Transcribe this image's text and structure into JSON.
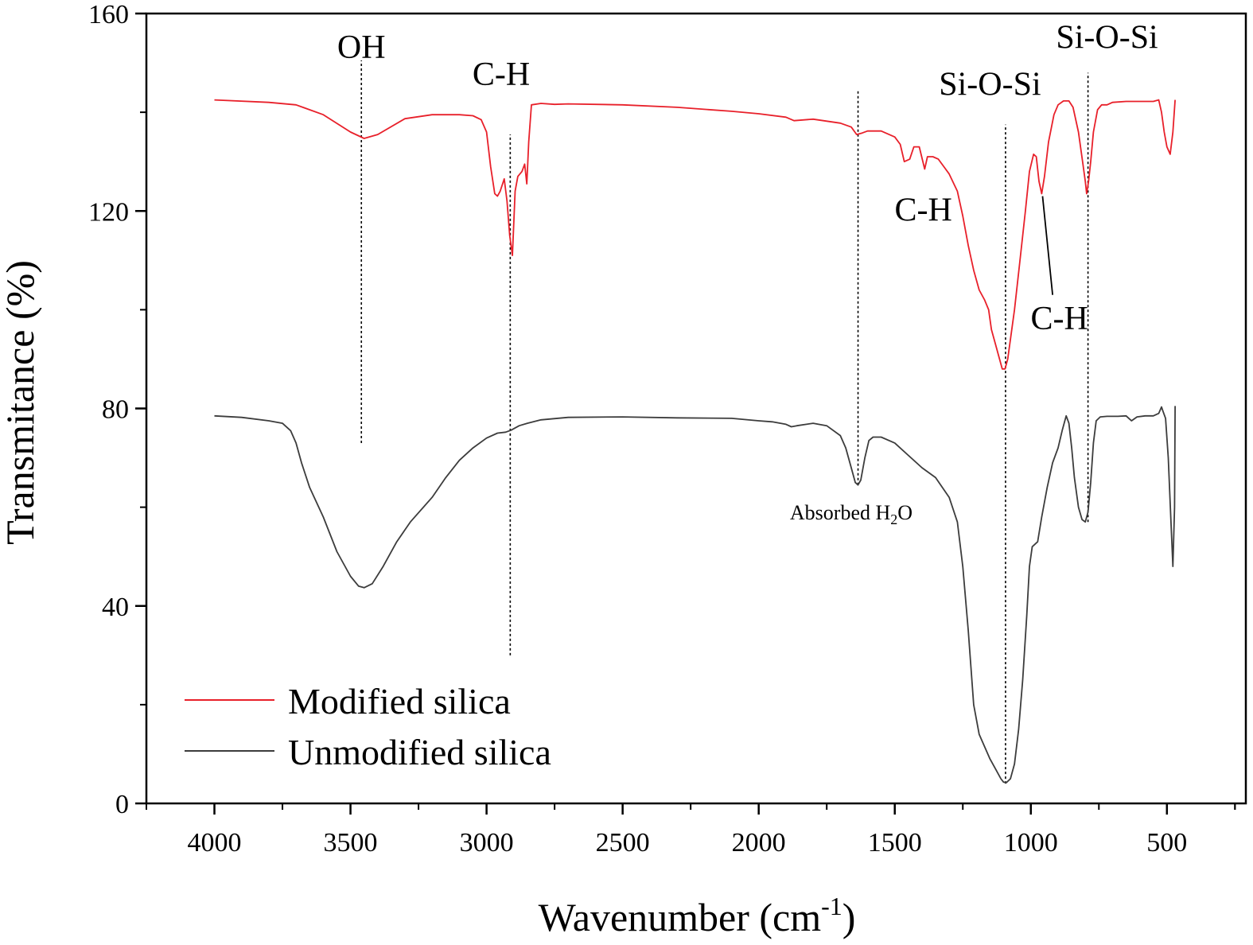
{
  "chart_data": {
    "type": "line",
    "xlabel_main": "Wavenumber (cm",
    "xlabel_sup": "-1",
    "xlabel_close": ")",
    "ylabel": "Transmitance (%)",
    "xlim": [
      4250,
      210
    ],
    "ylim": [
      0,
      160
    ],
    "x_ticks": [
      4000,
      3500,
      3000,
      2500,
      2000,
      1500,
      1000,
      500
    ],
    "y_ticks": [
      0,
      40,
      80,
      120,
      160
    ],
    "colors": {
      "modified": "#e8202a",
      "unmodified": "#3c3c3c",
      "axis": "#000000",
      "guide": "#000000"
    },
    "legend_position": "bottom-left",
    "series": [
      {
        "name": "Modified silica",
        "color": "#e8202a",
        "points": [
          [
            4000,
            142.5
          ],
          [
            3800,
            142
          ],
          [
            3700,
            141.5
          ],
          [
            3600,
            139.5
          ],
          [
            3500,
            136
          ],
          [
            3450,
            134.7
          ],
          [
            3400,
            135.5
          ],
          [
            3300,
            138.7
          ],
          [
            3200,
            139.5
          ],
          [
            3100,
            139.5
          ],
          [
            3050,
            139.3
          ],
          [
            3020,
            138.5
          ],
          [
            3000,
            136
          ],
          [
            2985,
            129
          ],
          [
            2970,
            123.5
          ],
          [
            2960,
            123
          ],
          [
            2950,
            124
          ],
          [
            2935,
            126.5
          ],
          [
            2925,
            122
          ],
          [
            2915,
            115
          ],
          [
            2905,
            111
          ],
          [
            2895,
            124
          ],
          [
            2885,
            127
          ],
          [
            2870,
            128
          ],
          [
            2860,
            129.5
          ],
          [
            2852,
            125.5
          ],
          [
            2845,
            134
          ],
          [
            2835,
            141.5
          ],
          [
            2800,
            141.8
          ],
          [
            2750,
            141.6
          ],
          [
            2700,
            141.7
          ],
          [
            2500,
            141.5
          ],
          [
            2300,
            141
          ],
          [
            2100,
            140.2
          ],
          [
            2000,
            139.7
          ],
          [
            1900,
            139
          ],
          [
            1870,
            138.3
          ],
          [
            1800,
            138.6
          ],
          [
            1700,
            137.8
          ],
          [
            1660,
            137
          ],
          [
            1640,
            135.5
          ],
          [
            1620,
            135.8
          ],
          [
            1600,
            136.2
          ],
          [
            1550,
            136.2
          ],
          [
            1500,
            135
          ],
          [
            1480,
            133.5
          ],
          [
            1465,
            130
          ],
          [
            1445,
            130.5
          ],
          [
            1430,
            133
          ],
          [
            1410,
            133
          ],
          [
            1390,
            128.5
          ],
          [
            1380,
            131
          ],
          [
            1360,
            131
          ],
          [
            1340,
            130.5
          ],
          [
            1320,
            129
          ],
          [
            1300,
            127.5
          ],
          [
            1270,
            124
          ],
          [
            1250,
            119
          ],
          [
            1230,
            113
          ],
          [
            1210,
            108
          ],
          [
            1190,
            104
          ],
          [
            1170,
            102
          ],
          [
            1155,
            100
          ],
          [
            1145,
            96
          ],
          [
            1130,
            93
          ],
          [
            1115,
            90
          ],
          [
            1105,
            88
          ],
          [
            1095,
            88
          ],
          [
            1085,
            90
          ],
          [
            1075,
            94
          ],
          [
            1060,
            100
          ],
          [
            1040,
            110
          ],
          [
            1020,
            120
          ],
          [
            1005,
            128
          ],
          [
            990,
            131.5
          ],
          [
            980,
            131
          ],
          [
            970,
            126
          ],
          [
            960,
            123.5
          ],
          [
            950,
            127
          ],
          [
            935,
            134
          ],
          [
            915,
            139.5
          ],
          [
            900,
            141.5
          ],
          [
            880,
            142.3
          ],
          [
            860,
            142.3
          ],
          [
            845,
            141
          ],
          [
            825,
            136
          ],
          [
            810,
            130
          ],
          [
            800,
            126
          ],
          [
            795,
            123.5
          ],
          [
            788,
            126
          ],
          [
            780,
            130
          ],
          [
            770,
            136
          ],
          [
            755,
            140.5
          ],
          [
            740,
            141.5
          ],
          [
            720,
            141.5
          ],
          [
            700,
            142
          ],
          [
            650,
            142.2
          ],
          [
            600,
            142.2
          ],
          [
            550,
            142.2
          ],
          [
            530,
            142.5
          ],
          [
            520,
            140
          ],
          [
            510,
            136
          ],
          [
            500,
            133
          ],
          [
            488,
            131.5
          ],
          [
            478,
            136
          ],
          [
            470,
            142.5
          ]
        ]
      },
      {
        "name": "Unmodified silica",
        "color": "#3c3c3c",
        "points": [
          [
            4000,
            78.5
          ],
          [
            3900,
            78.2
          ],
          [
            3800,
            77.5
          ],
          [
            3750,
            77
          ],
          [
            3720,
            75.5
          ],
          [
            3700,
            73
          ],
          [
            3680,
            69
          ],
          [
            3650,
            64
          ],
          [
            3600,
            58
          ],
          [
            3550,
            51
          ],
          [
            3500,
            46
          ],
          [
            3470,
            44
          ],
          [
            3450,
            43.7
          ],
          [
            3420,
            44.5
          ],
          [
            3380,
            48
          ],
          [
            3330,
            53
          ],
          [
            3280,
            57
          ],
          [
            3200,
            62
          ],
          [
            3150,
            66
          ],
          [
            3100,
            69.5
          ],
          [
            3050,
            72
          ],
          [
            3000,
            74
          ],
          [
            2960,
            75
          ],
          [
            2930,
            75.2
          ],
          [
            2910,
            75.6
          ],
          [
            2880,
            76.5
          ],
          [
            2850,
            77
          ],
          [
            2800,
            77.7
          ],
          [
            2700,
            78.2
          ],
          [
            2500,
            78.3
          ],
          [
            2300,
            78.1
          ],
          [
            2100,
            78
          ],
          [
            2000,
            77.5
          ],
          [
            1950,
            77.3
          ],
          [
            1900,
            76.8
          ],
          [
            1880,
            76.3
          ],
          [
            1860,
            76.5
          ],
          [
            1800,
            77
          ],
          [
            1750,
            76.5
          ],
          [
            1700,
            74.5
          ],
          [
            1680,
            72
          ],
          [
            1660,
            68
          ],
          [
            1645,
            65
          ],
          [
            1635,
            64.5
          ],
          [
            1625,
            65.5
          ],
          [
            1610,
            70
          ],
          [
            1595,
            73.5
          ],
          [
            1580,
            74.2
          ],
          [
            1550,
            74.2
          ],
          [
            1500,
            73
          ],
          [
            1450,
            70.5
          ],
          [
            1400,
            68
          ],
          [
            1350,
            66
          ],
          [
            1300,
            62
          ],
          [
            1270,
            57
          ],
          [
            1250,
            48
          ],
          [
            1230,
            35
          ],
          [
            1210,
            20
          ],
          [
            1190,
            14
          ],
          [
            1170,
            11.5
          ],
          [
            1150,
            9
          ],
          [
            1130,
            7
          ],
          [
            1110,
            5
          ],
          [
            1100,
            4.3
          ],
          [
            1090,
            4.2
          ],
          [
            1075,
            5
          ],
          [
            1060,
            8
          ],
          [
            1045,
            15
          ],
          [
            1030,
            25
          ],
          [
            1015,
            38
          ],
          [
            1005,
            48
          ],
          [
            995,
            52
          ],
          [
            985,
            52.5
          ],
          [
            975,
            53
          ],
          [
            960,
            58
          ],
          [
            940,
            64
          ],
          [
            920,
            69
          ],
          [
            900,
            72
          ],
          [
            885,
            75.5
          ],
          [
            870,
            78.5
          ],
          [
            860,
            77
          ],
          [
            850,
            72
          ],
          [
            840,
            66
          ],
          [
            825,
            60
          ],
          [
            812,
            57.5
          ],
          [
            800,
            57
          ],
          [
            790,
            59
          ],
          [
            780,
            65
          ],
          [
            770,
            73
          ],
          [
            760,
            77.5
          ],
          [
            745,
            78.3
          ],
          [
            720,
            78.4
          ],
          [
            700,
            78.4
          ],
          [
            680,
            78.4
          ],
          [
            650,
            78.5
          ],
          [
            640,
            78
          ],
          [
            630,
            77.5
          ],
          [
            610,
            78.3
          ],
          [
            580,
            78.5
          ],
          [
            550,
            78.5
          ],
          [
            530,
            79
          ],
          [
            520,
            80.3
          ],
          [
            515,
            79.5
          ],
          [
            505,
            78
          ],
          [
            495,
            70
          ],
          [
            485,
            57
          ],
          [
            478,
            48
          ],
          [
            472,
            60
          ],
          [
            470,
            80.5
          ]
        ]
      }
    ],
    "guides": [
      3460,
      2913,
      1635,
      1093,
      790
    ],
    "annotations": [
      {
        "text": "OH",
        "x": 3460,
        "y": 151
      },
      {
        "text": "C-H",
        "x": 2946,
        "y": 145.5
      },
      {
        "text": "C-H",
        "x": 1395,
        "y": 118
      },
      {
        "text": "Si-O-Si",
        "x": 1150,
        "y": 143.5
      },
      {
        "text": "C-H",
        "x": 895,
        "y": 96
      },
      {
        "text": "Si-O-Si",
        "x": 720,
        "y": 153
      }
    ],
    "water_label_main": "Absorbed H",
    "water_label_sub": "2",
    "water_label_end": "O",
    "water_label_pos": {
      "x": 1660,
      "y": 57.5
    }
  }
}
